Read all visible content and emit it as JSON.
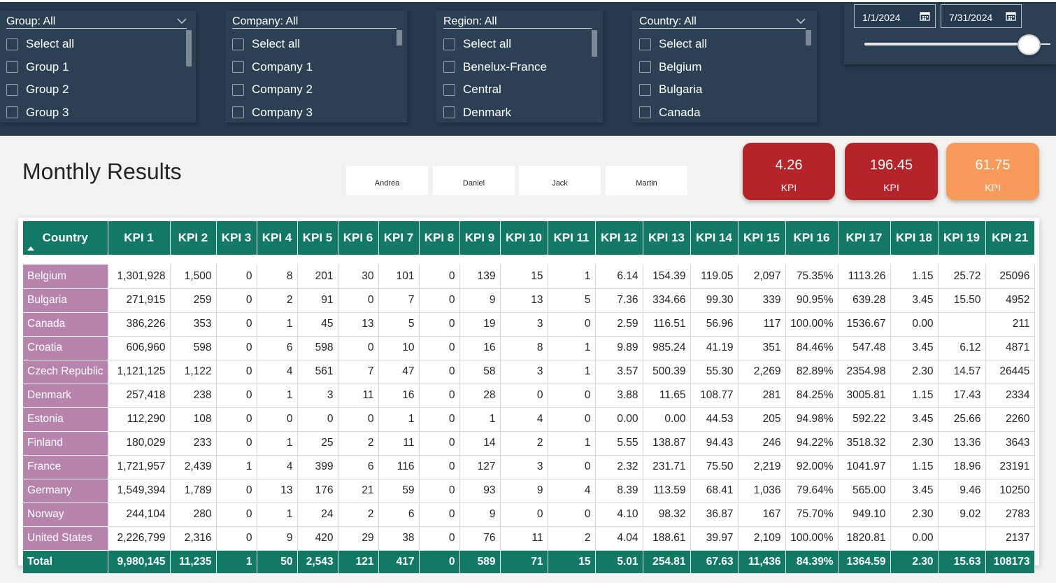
{
  "slicers": [
    {
      "title": "Group: All",
      "has_chevron": true,
      "options": [
        "Select all",
        "Group 1",
        "Group 2",
        "Group 3"
      ]
    },
    {
      "title": "Company: All",
      "has_chevron": false,
      "options": [
        "Select all",
        "Company 1",
        "Company 2",
        "Company 3"
      ]
    },
    {
      "title": "Region: All",
      "has_chevron": false,
      "options": [
        "Select all",
        "Benelux-France",
        "Central",
        "Denmark"
      ]
    },
    {
      "title": "Country: All",
      "has_chevron": true,
      "options": [
        "Select all",
        "Belgium",
        "Bulgaria",
        "Canada"
      ]
    }
  ],
  "date_range": {
    "start": "1/1/2024",
    "end": "7/31/2024",
    "slider_position": 1.0
  },
  "page_title": "Monthly Results",
  "people": [
    "Andrea",
    "Daniel",
    "Jack",
    "Martin"
  ],
  "kpi_cards": [
    {
      "value": "4.26",
      "label": "KPI",
      "color": "#b52428"
    },
    {
      "value": "196.45",
      "label": "KPI",
      "color": "#b52428"
    },
    {
      "value": "61.75",
      "label": "KPI",
      "color": "#f79a5a"
    }
  ],
  "table": {
    "columns": [
      "Country",
      "KPI 1",
      "KPI 2",
      "KPI 3",
      "KPI 4",
      "KPI 5",
      "KPI 6",
      "KPI 7",
      "KPI 8",
      "KPI 9",
      "KPI 10",
      "KPI 11",
      "KPI 12",
      "KPI 13",
      "KPI 14",
      "KPI 15",
      "KPI 16",
      "KPI 17",
      "KPI 18",
      "KPI 19",
      "KPI 21"
    ],
    "sort_column": "Country",
    "sort_direction": "ascending",
    "rows": [
      [
        "Belgium",
        "1,301,928",
        "1,500",
        "0",
        "8",
        "201",
        "30",
        "101",
        "0",
        "139",
        "15",
        "1",
        "6.14",
        "154.39",
        "119.05",
        "2,097",
        "75.35%",
        "1113.26",
        "1.15",
        "25.72",
        "25096"
      ],
      [
        "Bulgaria",
        "271,915",
        "259",
        "0",
        "2",
        "91",
        "0",
        "7",
        "0",
        "9",
        "13",
        "5",
        "7.36",
        "334.66",
        "99.30",
        "339",
        "90.95%",
        "639.28",
        "3.45",
        "15.50",
        "4952"
      ],
      [
        "Canada",
        "386,226",
        "353",
        "0",
        "1",
        "45",
        "13",
        "5",
        "0",
        "19",
        "3",
        "0",
        "2.59",
        "116.51",
        "56.96",
        "117",
        "100.00%",
        "1536.67",
        "0.00",
        "",
        "211"
      ],
      [
        "Croatia",
        "606,960",
        "598",
        "0",
        "6",
        "598",
        "0",
        "10",
        "0",
        "16",
        "8",
        "1",
        "9.89",
        "985.24",
        "41.19",
        "351",
        "84.46%",
        "547.48",
        "3.45",
        "6.12",
        "4871"
      ],
      [
        "Czech Republic",
        "1,121,125",
        "1,122",
        "0",
        "4",
        "561",
        "7",
        "47",
        "0",
        "58",
        "3",
        "1",
        "3.57",
        "500.39",
        "55.30",
        "2,269",
        "82.89%",
        "2354.98",
        "2.30",
        "14.57",
        "26445"
      ],
      [
        "Denmark",
        "257,418",
        "238",
        "0",
        "1",
        "3",
        "11",
        "16",
        "0",
        "28",
        "0",
        "0",
        "3.88",
        "11.65",
        "108.77",
        "281",
        "84.25%",
        "3005.81",
        "1.15",
        "17.43",
        "2334"
      ],
      [
        "Estonia",
        "112,290",
        "108",
        "0",
        "0",
        "0",
        "0",
        "1",
        "0",
        "1",
        "4",
        "0",
        "0.00",
        "0.00",
        "44.53",
        "205",
        "94.98%",
        "592.22",
        "3.45",
        "25.66",
        "2260"
      ],
      [
        "Finland",
        "180,029",
        "233",
        "0",
        "1",
        "25",
        "2",
        "11",
        "0",
        "14",
        "2",
        "1",
        "5.55",
        "138.87",
        "94.43",
        "246",
        "94.22%",
        "3518.32",
        "2.30",
        "13.36",
        "3643"
      ],
      [
        "France",
        "1,721,957",
        "2,439",
        "1",
        "4",
        "399",
        "6",
        "116",
        "0",
        "127",
        "3",
        "0",
        "2.32",
        "231.71",
        "75.50",
        "2,219",
        "92.00%",
        "1041.97",
        "1.15",
        "18.96",
        "23191"
      ],
      [
        "Germany",
        "1,549,394",
        "1,789",
        "0",
        "13",
        "176",
        "21",
        "59",
        "0",
        "93",
        "9",
        "4",
        "8.39",
        "113.59",
        "68.41",
        "1,036",
        "79.64%",
        "565.00",
        "3.45",
        "9.46",
        "10250"
      ],
      [
        "Norway",
        "244,104",
        "280",
        "0",
        "1",
        "24",
        "2",
        "6",
        "0",
        "9",
        "0",
        "0",
        "4.10",
        "98.32",
        "36.87",
        "167",
        "75.70%",
        "949.10",
        "2.30",
        "9.02",
        "2783"
      ],
      [
        "United States",
        "2,226,799",
        "2,316",
        "0",
        "9",
        "420",
        "29",
        "38",
        "0",
        "76",
        "11",
        "2",
        "4.04",
        "188.61",
        "39.97",
        "2,109",
        "100.00%",
        "1820.81",
        "0.00",
        "",
        "2137"
      ]
    ],
    "total": [
      "Total",
      "9,980,145",
      "11,235",
      "1",
      "50",
      "2,543",
      "121",
      "417",
      "0",
      "589",
      "71",
      "15",
      "5.01",
      "254.81",
      "67.63",
      "11,436",
      "84.39%",
      "1364.59",
      "2.30",
      "15.63",
      "108173"
    ]
  }
}
